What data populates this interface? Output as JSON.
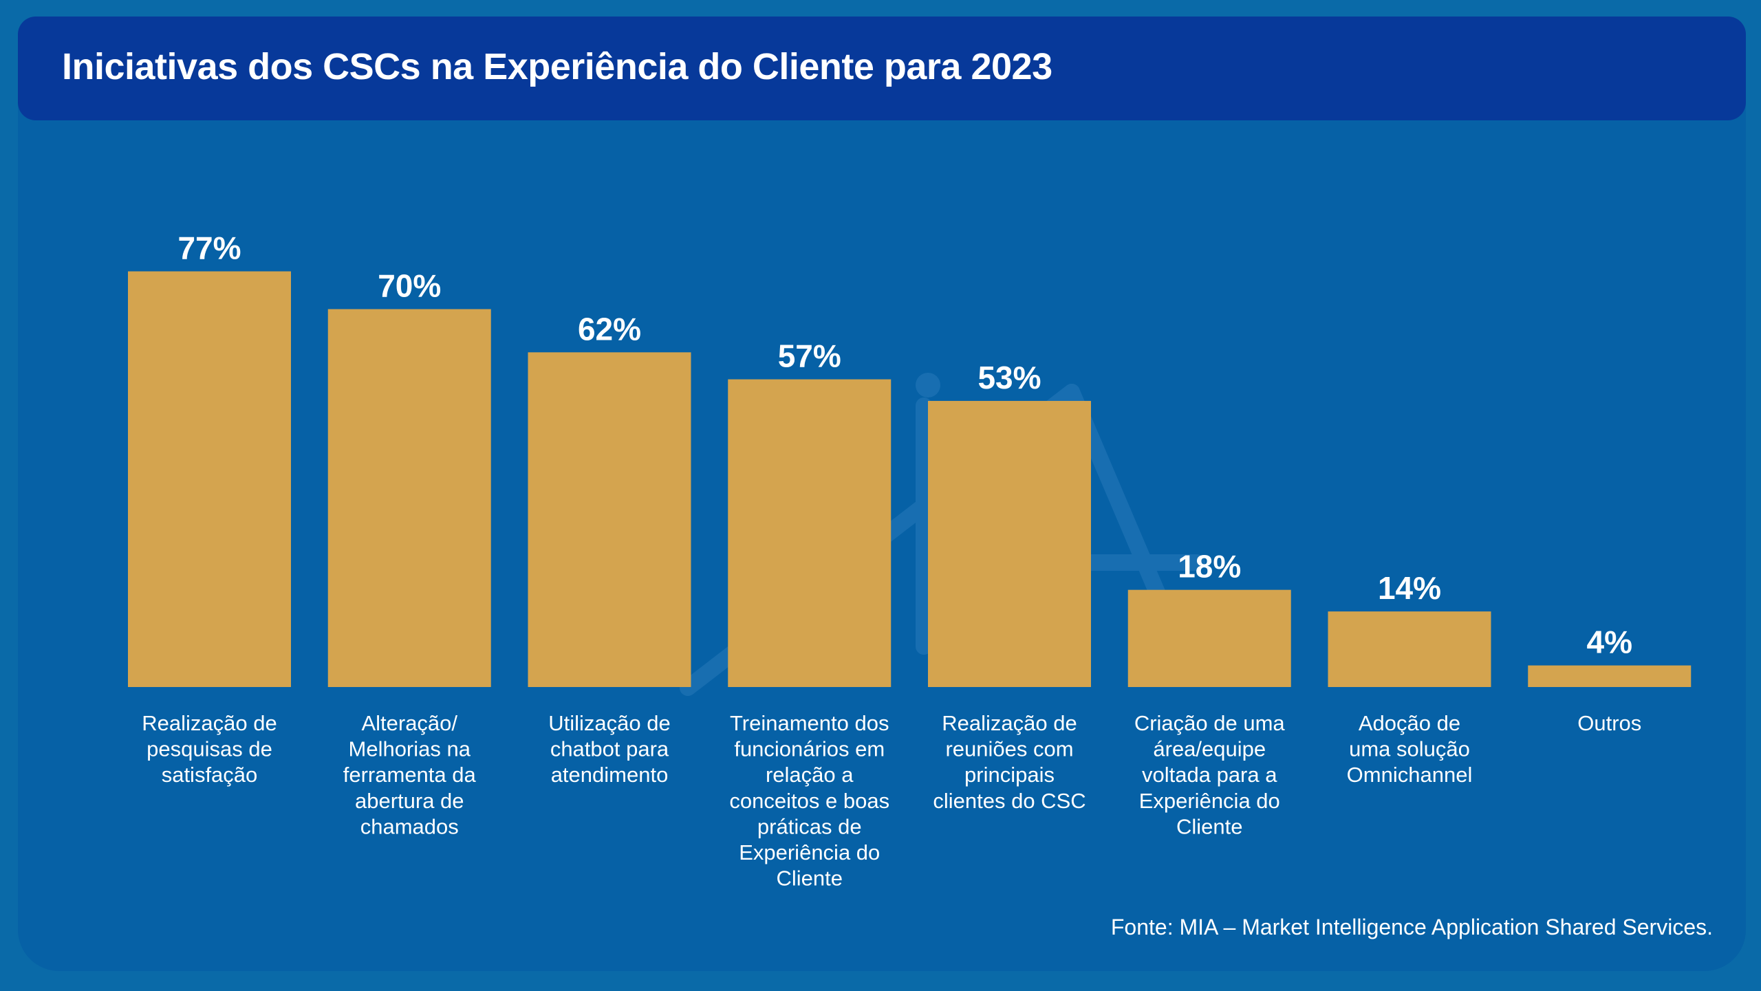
{
  "title": "Iniciativas dos CSCs na Experiência do Cliente para 2023",
  "source": "Fonte: MIA – Market Intelligence Application Shared Services.",
  "colors": {
    "background": "#0661a6",
    "title_bar": "#07399a",
    "bar": "#d4a44f",
    "text": "#ffffff"
  },
  "chart_data": {
    "type": "bar",
    "title": "Iniciativas dos CSCs na Experiência do Cliente para 2023",
    "categories": [
      "Realização de pesquisas de satisfação",
      "Alteração/ Melhorias na ferramenta da abertura de chamados",
      "Utilização de chatbot para atendimento",
      "Treinamento dos funcionários em relação a conceitos e boas práticas de Experiência do Cliente",
      "Realização de reuniões com principais clientes do CSC",
      "Criação de uma área/equipe voltada para a Experiência do Cliente",
      "Adoção de uma solução Omnichannel",
      "Outros"
    ],
    "category_lines": [
      [
        "Realização de",
        "pesquisas de",
        "satisfação"
      ],
      [
        "Alteração/",
        "Melhorias na",
        "ferramenta da",
        "abertura de",
        "chamados"
      ],
      [
        "Utilização de",
        "chatbot para",
        "atendimento"
      ],
      [
        "Treinamento dos",
        "funcionários em",
        "relação a",
        "conceitos e boas",
        "práticas de",
        "Experiência do",
        "Cliente"
      ],
      [
        "Realização de",
        "reuniões com",
        "principais",
        "clientes do CSC"
      ],
      [
        "Criação de uma",
        "área/equipe",
        "voltada para a",
        "Experiência do",
        "Cliente"
      ],
      [
        "Adoção de",
        "uma solução",
        "Omnichannel"
      ],
      [
        "Outros"
      ]
    ],
    "values": [
      77,
      70,
      62,
      57,
      53,
      18,
      14,
      4
    ],
    "data_labels": [
      "77%",
      "70%",
      "62%",
      "57%",
      "53%",
      "18%",
      "14%",
      "4%"
    ],
    "xlabel": "",
    "ylabel": "",
    "ylim": [
      0,
      100
    ],
    "grid": false,
    "axes_visible": false
  }
}
